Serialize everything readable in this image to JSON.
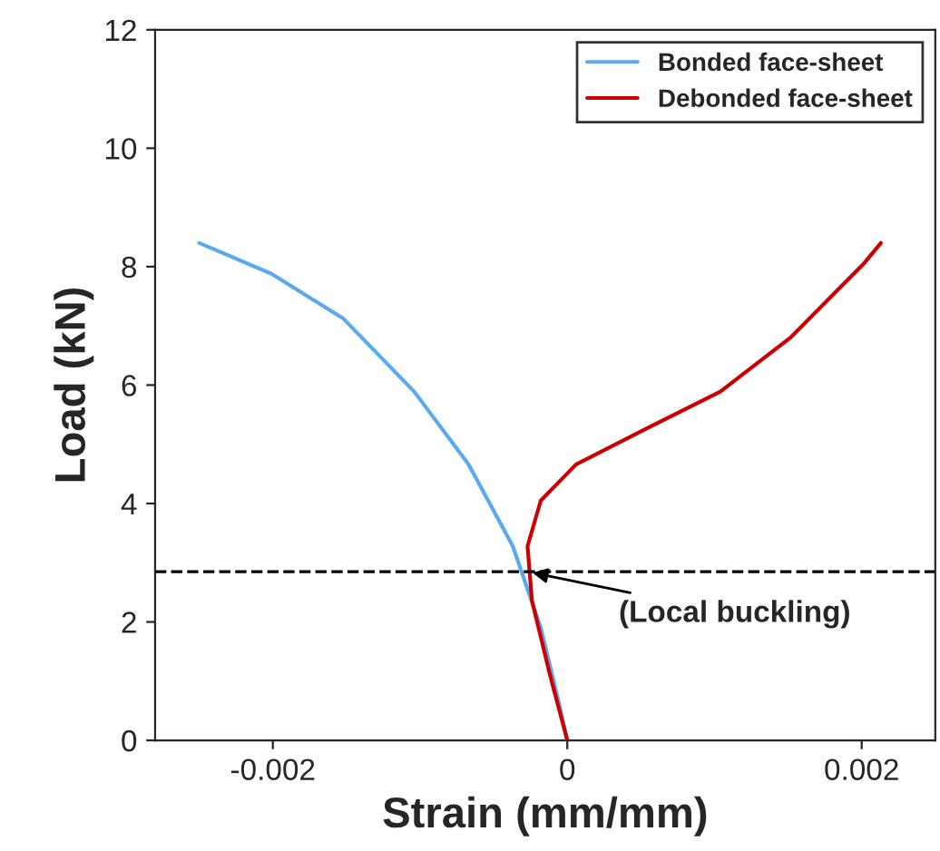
{
  "chart_data": {
    "type": "line",
    "xlabel": "Strain (mm/mm)",
    "ylabel": "Load (kN)",
    "xlim": [
      -0.0028,
      0.0025
    ],
    "ylim": [
      0,
      12
    ],
    "xticks": [
      {
        "value": -0.002,
        "label": "-0.002"
      },
      0,
      {
        "value": 0.002,
        "label": "0.002"
      }
    ],
    "yticks": [
      0,
      2,
      4,
      6,
      8,
      10,
      12
    ],
    "grid": false,
    "legend": "top right",
    "marker": "none",
    "line_style": "solid",
    "series": [
      {
        "name": "Bonded face-sheet",
        "color": "#5aaaf0",
        "x": [
          -0.0025,
          -0.00201,
          -0.00152,
          -0.00104,
          -0.00067,
          -0.00037,
          -0.00018,
          -6e-05,
          0
        ],
        "values": [
          8.4,
          7.88,
          7.12,
          5.89,
          4.66,
          3.28,
          1.9,
          0.67,
          0
        ]
      },
      {
        "name": "Debonded face-sheet",
        "color": "#cc0000",
        "x": [
          0,
          -0.00012,
          -0.00024,
          -0.00027,
          -0.00018,
          6e-05,
          0.00055,
          0.00104,
          0.00152,
          0.00201,
          0.00213
        ],
        "values": [
          0,
          1.13,
          2.36,
          3.28,
          4.05,
          4.66,
          5.28,
          5.89,
          6.81,
          8.04,
          8.4
        ]
      }
    ],
    "ref_lines": [
      {
        "axis": "y",
        "value": 2.85,
        "line_style": "dashed",
        "color": "#000000"
      }
    ],
    "annotations": [
      {
        "text": "(Local buckling)",
        "x": -0.00027,
        "y": 2.85
      }
    ]
  }
}
